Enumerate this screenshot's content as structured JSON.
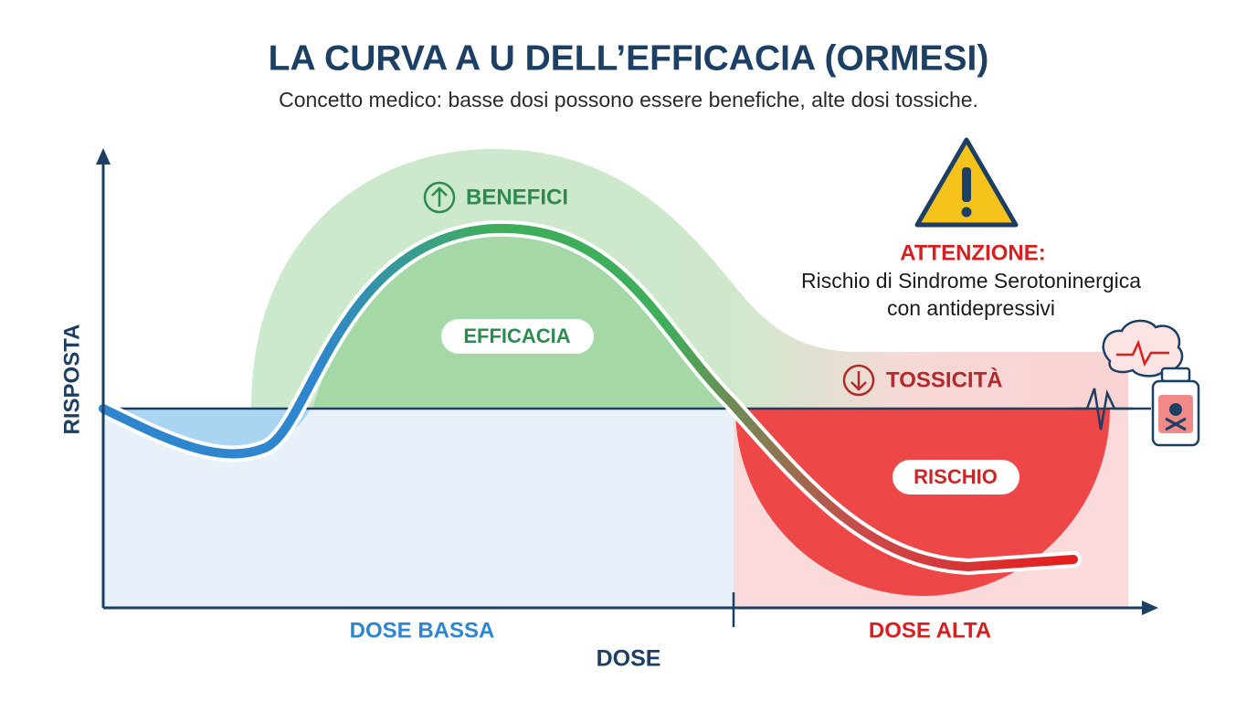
{
  "header": {
    "title": "LA CURVA A U DELL’EFFICACIA (ORMESI)",
    "subtitle": "Concetto medico: basse dosi possono essere benefiche, alte dosi tossiche."
  },
  "axes": {
    "y_label": "RISPOSTA",
    "x_label": "DOSE",
    "x_low": "DOSE BASSA",
    "x_high": "DOSE ALTA"
  },
  "zones": {
    "benefit": {
      "title": "BENEFICI",
      "label": "EFFICACIA"
    },
    "toxicity": {
      "title": "TOSSICITÀ",
      "label": "RISCHIO"
    }
  },
  "warning": {
    "title": "ATTENZIONE:",
    "lines": [
      "Rischio di Sindrome Serotoninergica",
      "con antidepressivi"
    ]
  }
}
